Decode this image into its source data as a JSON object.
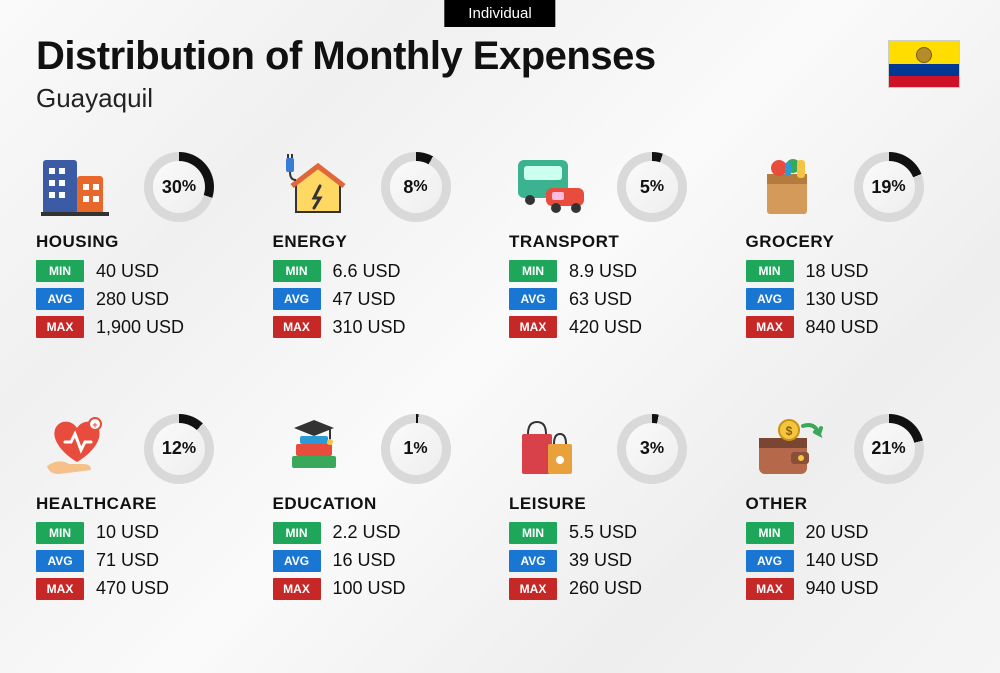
{
  "badge": "Individual",
  "title": "Distribution of Monthly Expenses",
  "subtitle": "Guayaquil",
  "flag_colors": {
    "yellow": "#ffdd00",
    "blue": "#003893",
    "red": "#ce1126"
  },
  "ring": {
    "track": "#d9d9d9",
    "fill": "#111111",
    "thickness": 9
  },
  "tag_labels": {
    "min": "MIN",
    "avg": "AVG",
    "max": "MAX"
  },
  "tag_colors": {
    "min": "#1ea65a",
    "avg": "#1976d2",
    "max": "#c62828"
  },
  "currency": "USD",
  "categories": [
    {
      "key": "housing",
      "label": "HOUSING",
      "percent": 30,
      "min": "40 USD",
      "avg": "280 USD",
      "max": "1,900 USD",
      "icon": "buildings"
    },
    {
      "key": "energy",
      "label": "ENERGY",
      "percent": 8,
      "min": "6.6 USD",
      "avg": "47 USD",
      "max": "310 USD",
      "icon": "energy-house"
    },
    {
      "key": "transport",
      "label": "TRANSPORT",
      "percent": 5,
      "min": "8.9 USD",
      "avg": "63 USD",
      "max": "420 USD",
      "icon": "bus-car"
    },
    {
      "key": "grocery",
      "label": "GROCERY",
      "percent": 19,
      "min": "18 USD",
      "avg": "130 USD",
      "max": "840 USD",
      "icon": "grocery-bag"
    },
    {
      "key": "healthcare",
      "label": "HEALTHCARE",
      "percent": 12,
      "min": "10 USD",
      "avg": "71 USD",
      "max": "470 USD",
      "icon": "heart-hand"
    },
    {
      "key": "education",
      "label": "EDUCATION",
      "percent": 1,
      "min": "2.2 USD",
      "avg": "16 USD",
      "max": "100 USD",
      "icon": "books-cap"
    },
    {
      "key": "leisure",
      "label": "LEISURE",
      "percent": 3,
      "min": "5.5 USD",
      "avg": "39 USD",
      "max": "260 USD",
      "icon": "shopping-bags"
    },
    {
      "key": "other",
      "label": "OTHER",
      "percent": 21,
      "min": "20 USD",
      "avg": "140 USD",
      "max": "940 USD",
      "icon": "wallet"
    }
  ]
}
